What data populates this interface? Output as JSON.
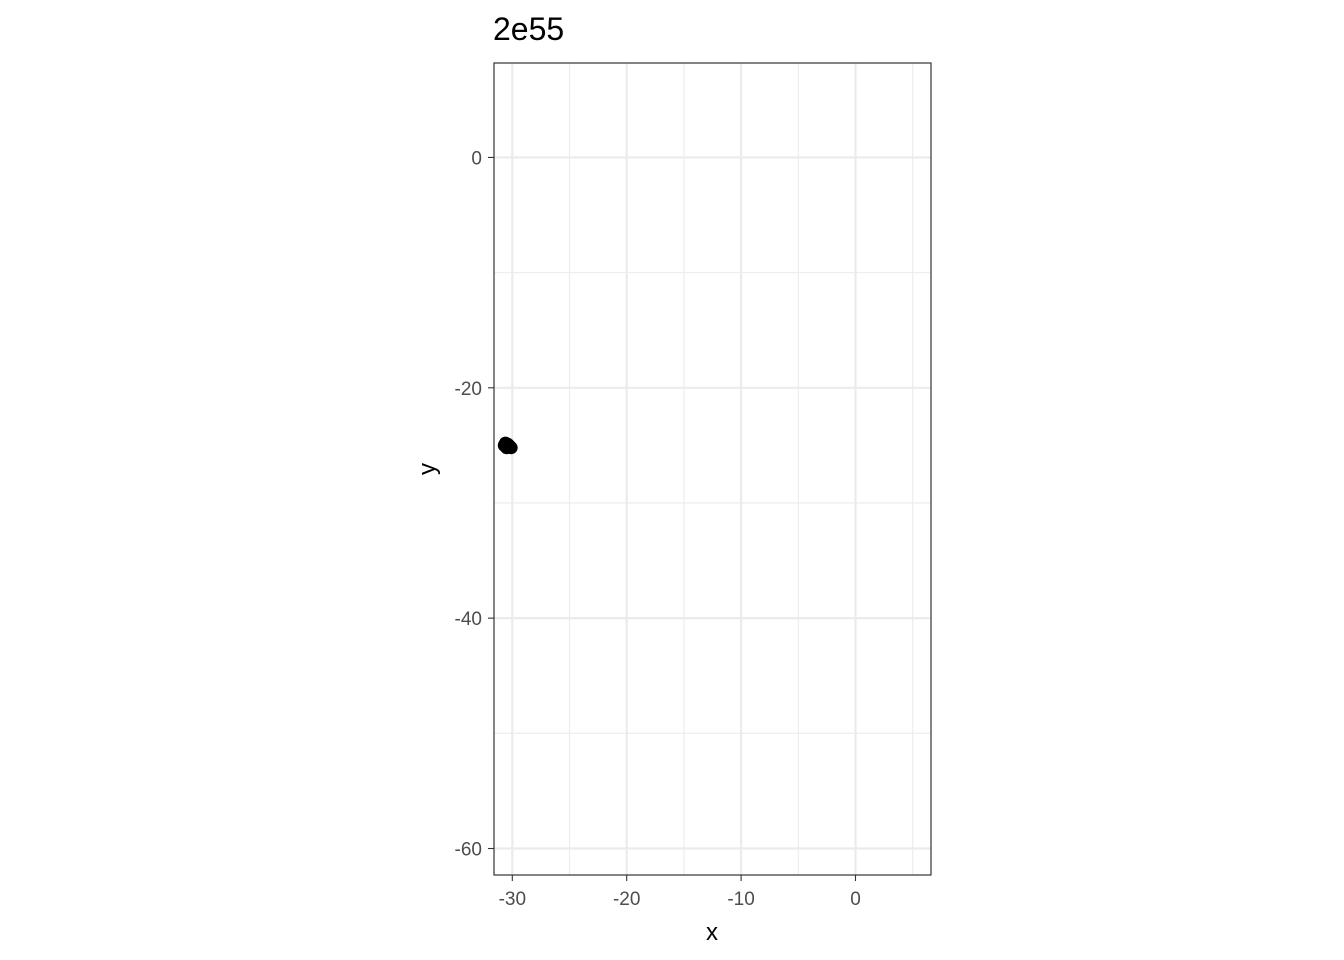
{
  "chart_data": {
    "type": "scatter",
    "title": "2e55",
    "xlabel": "x",
    "ylabel": "y",
    "xlim": [
      -31.6,
      6.6
    ],
    "ylim": [
      -62.3,
      8.2
    ],
    "x_ticks": [
      -30,
      -20,
      -10,
      0
    ],
    "x_tick_labels": [
      "-30",
      "-20",
      "-10",
      "0"
    ],
    "y_ticks": [
      0,
      -20,
      -40,
      -60
    ],
    "y_tick_labels": [
      "0",
      "-20",
      "-40",
      "-60"
    ],
    "x_minor_ticks": [
      -25,
      -15,
      -5,
      5
    ],
    "y_minor_ticks": [
      -10,
      -30,
      -50
    ],
    "grid": true,
    "legend": "none",
    "point_color": "#000000",
    "grid_color": "#ebebeb",
    "panel_border_color": "#333333",
    "series": [
      {
        "points": [
          {
            "x": -30.7,
            "y": -25.0
          },
          {
            "x": -30.5,
            "y": -25.2
          },
          {
            "x": -30.4,
            "y": -24.9
          },
          {
            "x": -30.2,
            "y": -25.1
          },
          {
            "x": -30.1,
            "y": -25.2
          },
          {
            "x": -30.6,
            "y": -24.8
          },
          {
            "x": -30.3,
            "y": -25.0
          }
        ]
      }
    ]
  }
}
